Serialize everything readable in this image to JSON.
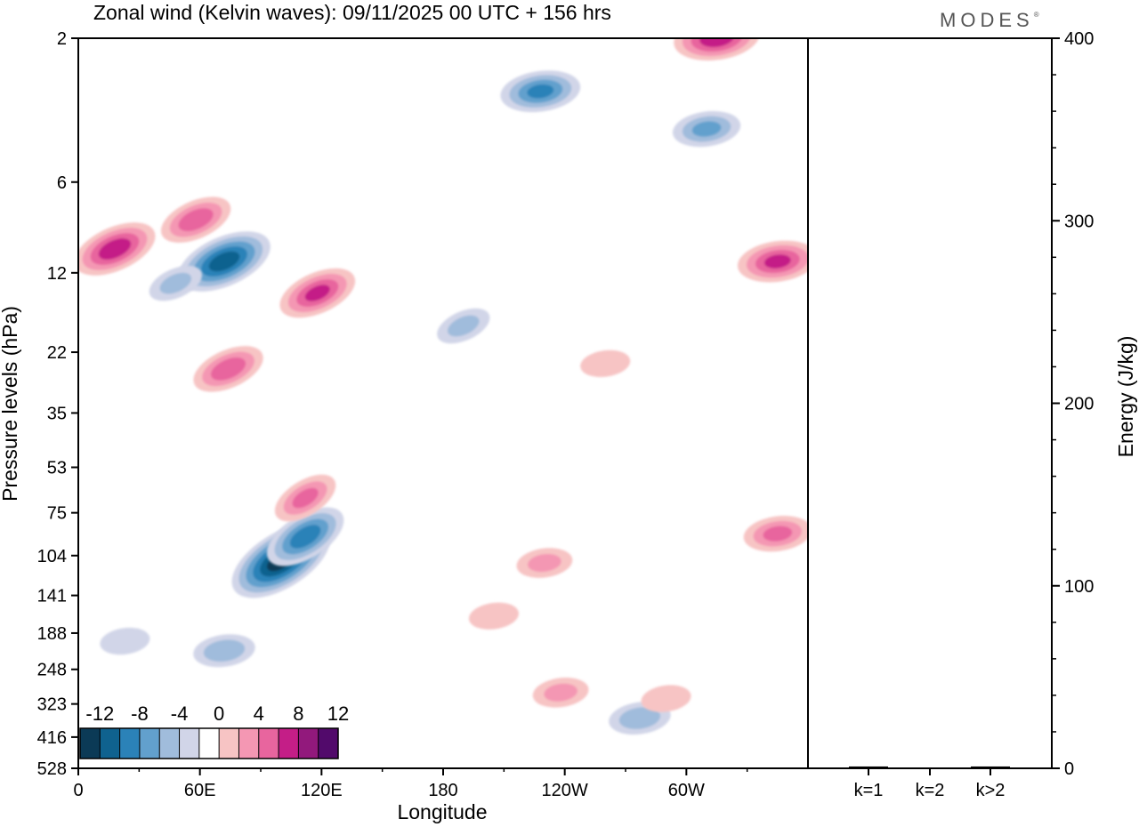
{
  "brand": "MODES",
  "brand_mark": "®",
  "chart_data": [
    {
      "type": "heatmap",
      "title": "Zonal wind (Kelvin waves):  09/11/2025  00 UTC  + 156 hrs",
      "xlabel": "Longitude",
      "ylabel": "Pressure levels (hPa)",
      "x_ticks": [
        "0",
        "60E",
        "120E",
        "180",
        "120W",
        "60W"
      ],
      "x_tick_degrees": [
        0,
        60,
        120,
        180,
        240,
        300
      ],
      "xlim": [
        0,
        360
      ],
      "y_ticks": [
        "2",
        "6",
        "12",
        "22",
        "35",
        "53",
        "75",
        "104",
        "141",
        "188",
        "248",
        "323",
        "416",
        "528"
      ],
      "colorbar": {
        "labels": [
          "-12",
          "-8",
          "-4",
          "0",
          "4",
          "8",
          "12"
        ],
        "levels": [
          -14,
          -12,
          -10,
          -8,
          -6,
          -4,
          -2,
          2,
          4,
          6,
          8,
          10,
          12,
          14
        ],
        "colors": [
          "#0b3a56",
          "#0f628f",
          "#2b82b8",
          "#62a0cd",
          "#a0bcdc",
          "#d1d5e8",
          "#ffffff",
          "#f7c4c4",
          "#f497b3",
          "#e8659e",
          "#c41e87",
          "#92197c",
          "#520a6b"
        ]
      },
      "features": [
        {
          "lon": 18,
          "level": 10,
          "value": 9
        },
        {
          "lon": 58,
          "level": 8,
          "value": 7
        },
        {
          "lon": 72,
          "level": 11,
          "value": -11
        },
        {
          "lon": 48,
          "level": 13,
          "value": -4
        },
        {
          "lon": 118,
          "level": 14,
          "value": 8
        },
        {
          "lon": 74,
          "level": 25,
          "value": 7
        },
        {
          "lon": 100,
          "level": 108,
          "value": -13
        },
        {
          "lon": 112,
          "level": 90,
          "value": -9
        },
        {
          "lon": 112,
          "level": 67,
          "value": 6
        },
        {
          "lon": 228,
          "level": 3,
          "value": -8
        },
        {
          "lon": 310,
          "level": 4,
          "value": -6
        },
        {
          "lon": 315,
          "level": 2,
          "value": 9
        },
        {
          "lon": 345,
          "level": 11,
          "value": 8
        },
        {
          "lon": 345,
          "level": 88,
          "value": 6
        },
        {
          "lon": 230,
          "level": 110,
          "value": 4
        },
        {
          "lon": 205,
          "level": 165,
          "value": 3
        },
        {
          "lon": 72,
          "level": 215,
          "value": -5
        },
        {
          "lon": 23,
          "level": 200,
          "value": -3
        },
        {
          "lon": 238,
          "level": 296,
          "value": 4
        },
        {
          "lon": 277,
          "level": 360,
          "value": -5
        },
        {
          "lon": 290,
          "level": 310,
          "value": 3
        },
        {
          "lon": 190,
          "level": 18,
          "value": -4
        },
        {
          "lon": 260,
          "level": 24,
          "value": 3
        }
      ]
    },
    {
      "type": "bar",
      "ylabel": "Energy (J/kg)",
      "categories": [
        "k=1",
        "k=2",
        "k>2"
      ],
      "values": [
        1,
        0,
        1
      ],
      "ylim": [
        0,
        400
      ],
      "y_ticks": [
        "0",
        "100",
        "200",
        "300",
        "400"
      ]
    }
  ]
}
